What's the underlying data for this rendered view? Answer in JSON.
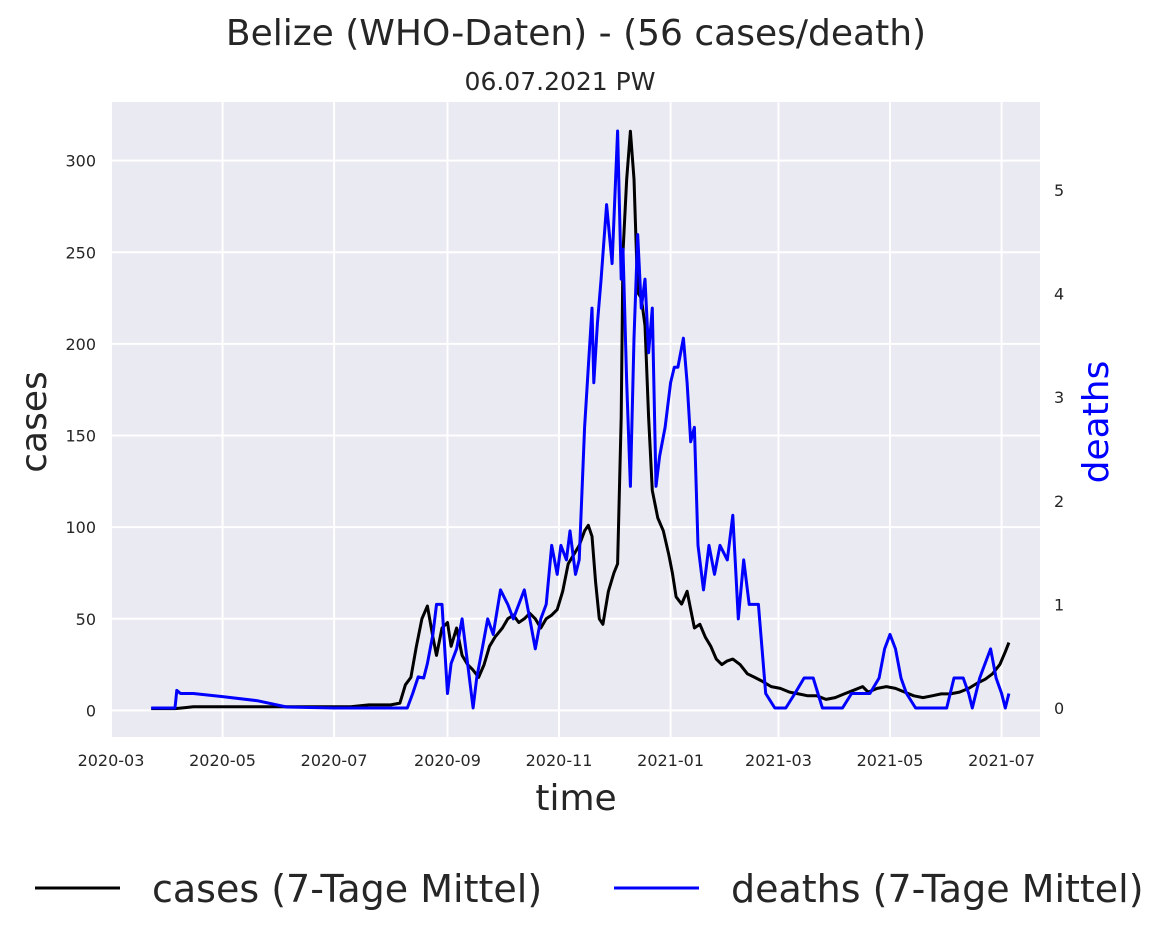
{
  "chart_data": {
    "type": "line",
    "title": "Belize (WHO-Daten) - (56 cases/death)",
    "subtitle": "06.07.2021 PW",
    "xlabel": "time",
    "ylabel": "cases",
    "y2label": "deaths",
    "grid": true,
    "legend_position": "bottom",
    "x_ticks": [
      "2020-03",
      "2020-05",
      "2020-07",
      "2020-09",
      "2020-11",
      "2021-01",
      "2021-03",
      "2021-05",
      "2021-07"
    ],
    "xlim": [
      "2020-03-01",
      "2021-07-22"
    ],
    "ylim": [
      -14.5,
      332
    ],
    "y_ticks": [
      0,
      50,
      100,
      150,
      200,
      250,
      300
    ],
    "y2lim": [
      -0.28,
      5.85
    ],
    "y2_ticks": [
      0,
      1,
      2,
      3,
      4,
      5
    ],
    "colors": {
      "cases": "#000000",
      "deaths": "#0000ff",
      "axis_right_label": "#0000ff"
    },
    "series": [
      {
        "name": "cases (7-Tage Mittel)",
        "axis": "left",
        "points": [
          [
            "2020-03-23",
            1
          ],
          [
            "2020-04-05",
            1
          ],
          [
            "2020-04-10",
            1.5
          ],
          [
            "2020-04-15",
            2
          ],
          [
            "2020-05-20",
            2
          ],
          [
            "2020-06-20",
            2
          ],
          [
            "2020-07-10",
            2
          ],
          [
            "2020-07-20",
            3
          ],
          [
            "2020-08-01",
            3
          ],
          [
            "2020-08-06",
            4
          ],
          [
            "2020-08-09",
            14
          ],
          [
            "2020-08-12",
            18
          ],
          [
            "2020-08-15",
            35
          ],
          [
            "2020-08-18",
            50
          ],
          [
            "2020-08-21",
            57
          ],
          [
            "2020-08-24",
            40
          ],
          [
            "2020-08-26",
            30
          ],
          [
            "2020-08-29",
            45
          ],
          [
            "2020-09-01",
            48
          ],
          [
            "2020-09-03",
            35
          ],
          [
            "2020-09-06",
            45
          ],
          [
            "2020-09-09",
            30
          ],
          [
            "2020-09-12",
            25
          ],
          [
            "2020-09-15",
            22
          ],
          [
            "2020-09-18",
            18
          ],
          [
            "2020-09-21",
            25
          ],
          [
            "2020-09-24",
            35
          ],
          [
            "2020-09-27",
            40
          ],
          [
            "2020-10-01",
            45
          ],
          [
            "2020-10-04",
            50
          ],
          [
            "2020-10-07",
            52
          ],
          [
            "2020-10-10",
            48
          ],
          [
            "2020-10-13",
            50
          ],
          [
            "2020-10-16",
            53
          ],
          [
            "2020-10-19",
            50
          ],
          [
            "2020-10-22",
            45
          ],
          [
            "2020-10-25",
            50
          ],
          [
            "2020-10-28",
            52
          ],
          [
            "2020-10-31",
            55
          ],
          [
            "2020-11-03",
            65
          ],
          [
            "2020-11-06",
            80
          ],
          [
            "2020-11-09",
            85
          ],
          [
            "2020-11-12",
            90
          ],
          [
            "2020-11-15",
            98
          ],
          [
            "2020-11-17",
            101
          ],
          [
            "2020-11-19",
            95
          ],
          [
            "2020-11-21",
            70
          ],
          [
            "2020-11-23",
            50
          ],
          [
            "2020-11-25",
            47
          ],
          [
            "2020-11-28",
            65
          ],
          [
            "2020-12-01",
            75
          ],
          [
            "2020-12-03",
            80
          ],
          [
            "2020-12-05",
            160
          ],
          [
            "2020-12-06",
            250
          ],
          [
            "2020-12-08",
            290
          ],
          [
            "2020-12-10",
            316
          ],
          [
            "2020-12-12",
            290
          ],
          [
            "2020-12-14",
            228
          ],
          [
            "2020-12-16",
            225
          ],
          [
            "2020-12-18",
            210
          ],
          [
            "2020-12-20",
            160
          ],
          [
            "2020-12-22",
            120
          ],
          [
            "2020-12-25",
            105
          ],
          [
            "2020-12-28",
            98
          ],
          [
            "2020-12-31",
            85
          ],
          [
            "2021-01-02",
            75
          ],
          [
            "2021-01-04",
            62
          ],
          [
            "2021-01-07",
            58
          ],
          [
            "2021-01-10",
            65
          ],
          [
            "2021-01-12",
            55
          ],
          [
            "2021-01-14",
            45
          ],
          [
            "2021-01-17",
            47
          ],
          [
            "2021-01-20",
            40
          ],
          [
            "2021-01-23",
            35
          ],
          [
            "2021-01-26",
            28
          ],
          [
            "2021-01-29",
            25
          ],
          [
            "2021-02-01",
            27
          ],
          [
            "2021-02-04",
            28
          ],
          [
            "2021-02-08",
            25
          ],
          [
            "2021-02-12",
            20
          ],
          [
            "2021-02-16",
            18
          ],
          [
            "2021-02-20",
            16
          ],
          [
            "2021-02-25",
            13
          ],
          [
            "2021-03-02",
            12
          ],
          [
            "2021-03-07",
            10
          ],
          [
            "2021-03-12",
            9
          ],
          [
            "2021-03-17",
            8
          ],
          [
            "2021-03-22",
            8
          ],
          [
            "2021-03-27",
            6
          ],
          [
            "2021-04-01",
            7
          ],
          [
            "2021-04-06",
            9
          ],
          [
            "2021-04-11",
            11
          ],
          [
            "2021-04-16",
            13
          ],
          [
            "2021-04-19",
            10
          ],
          [
            "2021-04-24",
            12
          ],
          [
            "2021-04-29",
            13
          ],
          [
            "2021-05-04",
            12
          ],
          [
            "2021-05-09",
            10
          ],
          [
            "2021-05-14",
            8
          ],
          [
            "2021-05-19",
            7
          ],
          [
            "2021-05-24",
            8
          ],
          [
            "2021-05-29",
            9
          ],
          [
            "2021-06-03",
            9
          ],
          [
            "2021-06-08",
            10
          ],
          [
            "2021-06-13",
            12
          ],
          [
            "2021-06-18",
            15
          ],
          [
            "2021-06-22",
            17
          ],
          [
            "2021-06-26",
            20
          ],
          [
            "2021-06-30",
            25
          ],
          [
            "2021-07-03",
            32
          ],
          [
            "2021-07-05",
            37
          ]
        ]
      },
      {
        "name": "deaths (7-Tage Mittel)",
        "axis": "right",
        "points": [
          [
            "2020-03-23",
            0
          ],
          [
            "2020-04-05",
            0
          ],
          [
            "2020-04-06",
            0.17
          ],
          [
            "2020-04-08",
            0.14
          ],
          [
            "2020-04-15",
            0.14
          ],
          [
            "2020-05-01",
            0.11
          ],
          [
            "2020-05-20",
            0.07
          ],
          [
            "2020-06-05",
            0.01
          ],
          [
            "2020-07-01",
            0
          ],
          [
            "2020-08-10",
            0
          ],
          [
            "2020-08-13",
            0.14
          ],
          [
            "2020-08-16",
            0.3
          ],
          [
            "2020-08-19",
            0.29
          ],
          [
            "2020-08-21",
            0.43
          ],
          [
            "2020-08-24",
            0.71
          ],
          [
            "2020-08-26",
            1
          ],
          [
            "2020-08-29",
            1
          ],
          [
            "2020-09-01",
            0.14
          ],
          [
            "2020-09-03",
            0.43
          ],
          [
            "2020-09-06",
            0.57
          ],
          [
            "2020-09-09",
            0.86
          ],
          [
            "2020-09-12",
            0.43
          ],
          [
            "2020-09-15",
            0
          ],
          [
            "2020-09-17",
            0.29
          ],
          [
            "2020-09-20",
            0.57
          ],
          [
            "2020-09-23",
            0.86
          ],
          [
            "2020-09-26",
            0.71
          ],
          [
            "2020-09-30",
            1.14
          ],
          [
            "2020-10-04",
            1
          ],
          [
            "2020-10-07",
            0.86
          ],
          [
            "2020-10-10",
            1
          ],
          [
            "2020-10-13",
            1.14
          ],
          [
            "2020-10-16",
            0.86
          ],
          [
            "2020-10-19",
            0.57
          ],
          [
            "2020-10-22",
            0.86
          ],
          [
            "2020-10-25",
            1
          ],
          [
            "2020-10-28",
            1.57
          ],
          [
            "2020-10-31",
            1.29
          ],
          [
            "2020-11-02",
            1.57
          ],
          [
            "2020-11-05",
            1.43
          ],
          [
            "2020-11-07",
            1.71
          ],
          [
            "2020-11-10",
            1.29
          ],
          [
            "2020-11-12",
            1.43
          ],
          [
            "2020-11-15",
            2.71
          ],
          [
            "2020-11-17",
            3.29
          ],
          [
            "2020-11-19",
            3.86
          ],
          [
            "2020-11-20",
            3.14
          ],
          [
            "2020-11-22",
            3.71
          ],
          [
            "2020-11-24",
            4.14
          ],
          [
            "2020-11-27",
            4.86
          ],
          [
            "2020-11-30",
            4.29
          ],
          [
            "2020-12-03",
            5.57
          ],
          [
            "2020-12-05",
            4.14
          ],
          [
            "2020-12-06",
            4.43
          ],
          [
            "2020-12-08",
            3.14
          ],
          [
            "2020-12-10",
            2.14
          ],
          [
            "2020-12-12",
            3.57
          ],
          [
            "2020-12-14",
            4.57
          ],
          [
            "2020-12-16",
            3.86
          ],
          [
            "2020-12-18",
            4.14
          ],
          [
            "2020-12-20",
            3.43
          ],
          [
            "2020-12-22",
            3.86
          ],
          [
            "2020-12-24",
            2.14
          ],
          [
            "2020-12-26",
            2.43
          ],
          [
            "2020-12-29",
            2.71
          ],
          [
            "2021-01-01",
            3.14
          ],
          [
            "2021-01-03",
            3.29
          ],
          [
            "2021-01-05",
            3.29
          ],
          [
            "2021-01-08",
            3.57
          ],
          [
            "2021-01-10",
            3.14
          ],
          [
            "2021-01-12",
            2.57
          ],
          [
            "2021-01-14",
            2.71
          ],
          [
            "2021-01-16",
            1.57
          ],
          [
            "2021-01-19",
            1.14
          ],
          [
            "2021-01-22",
            1.57
          ],
          [
            "2021-01-25",
            1.29
          ],
          [
            "2021-01-28",
            1.57
          ],
          [
            "2021-02-01",
            1.43
          ],
          [
            "2021-02-04",
            1.86
          ],
          [
            "2021-02-07",
            0.86
          ],
          [
            "2021-02-10",
            1.43
          ],
          [
            "2021-02-13",
            1
          ],
          [
            "2021-02-18",
            1
          ],
          [
            "2021-02-22",
            0.14
          ],
          [
            "2021-02-27",
            0
          ],
          [
            "2021-03-05",
            0
          ],
          [
            "2021-03-10",
            0.14
          ],
          [
            "2021-03-15",
            0.29
          ],
          [
            "2021-03-20",
            0.29
          ],
          [
            "2021-03-25",
            0
          ],
          [
            "2021-04-05",
            0
          ],
          [
            "2021-04-10",
            0.14
          ],
          [
            "2021-04-20",
            0.14
          ],
          [
            "2021-04-25",
            0.29
          ],
          [
            "2021-04-28",
            0.57
          ],
          [
            "2021-05-01",
            0.71
          ],
          [
            "2021-05-04",
            0.57
          ],
          [
            "2021-05-07",
            0.29
          ],
          [
            "2021-05-10",
            0.14
          ],
          [
            "2021-05-15",
            0
          ],
          [
            "2021-06-01",
            0
          ],
          [
            "2021-06-05",
            0.29
          ],
          [
            "2021-06-10",
            0.29
          ],
          [
            "2021-06-13",
            0.14
          ],
          [
            "2021-06-15",
            0
          ],
          [
            "2021-06-19",
            0.29
          ],
          [
            "2021-06-22",
            0.43
          ],
          [
            "2021-06-25",
            0.57
          ],
          [
            "2021-06-28",
            0.29
          ],
          [
            "2021-07-01",
            0.14
          ],
          [
            "2021-07-03",
            0
          ],
          [
            "2021-07-05",
            0.14
          ]
        ]
      }
    ]
  }
}
